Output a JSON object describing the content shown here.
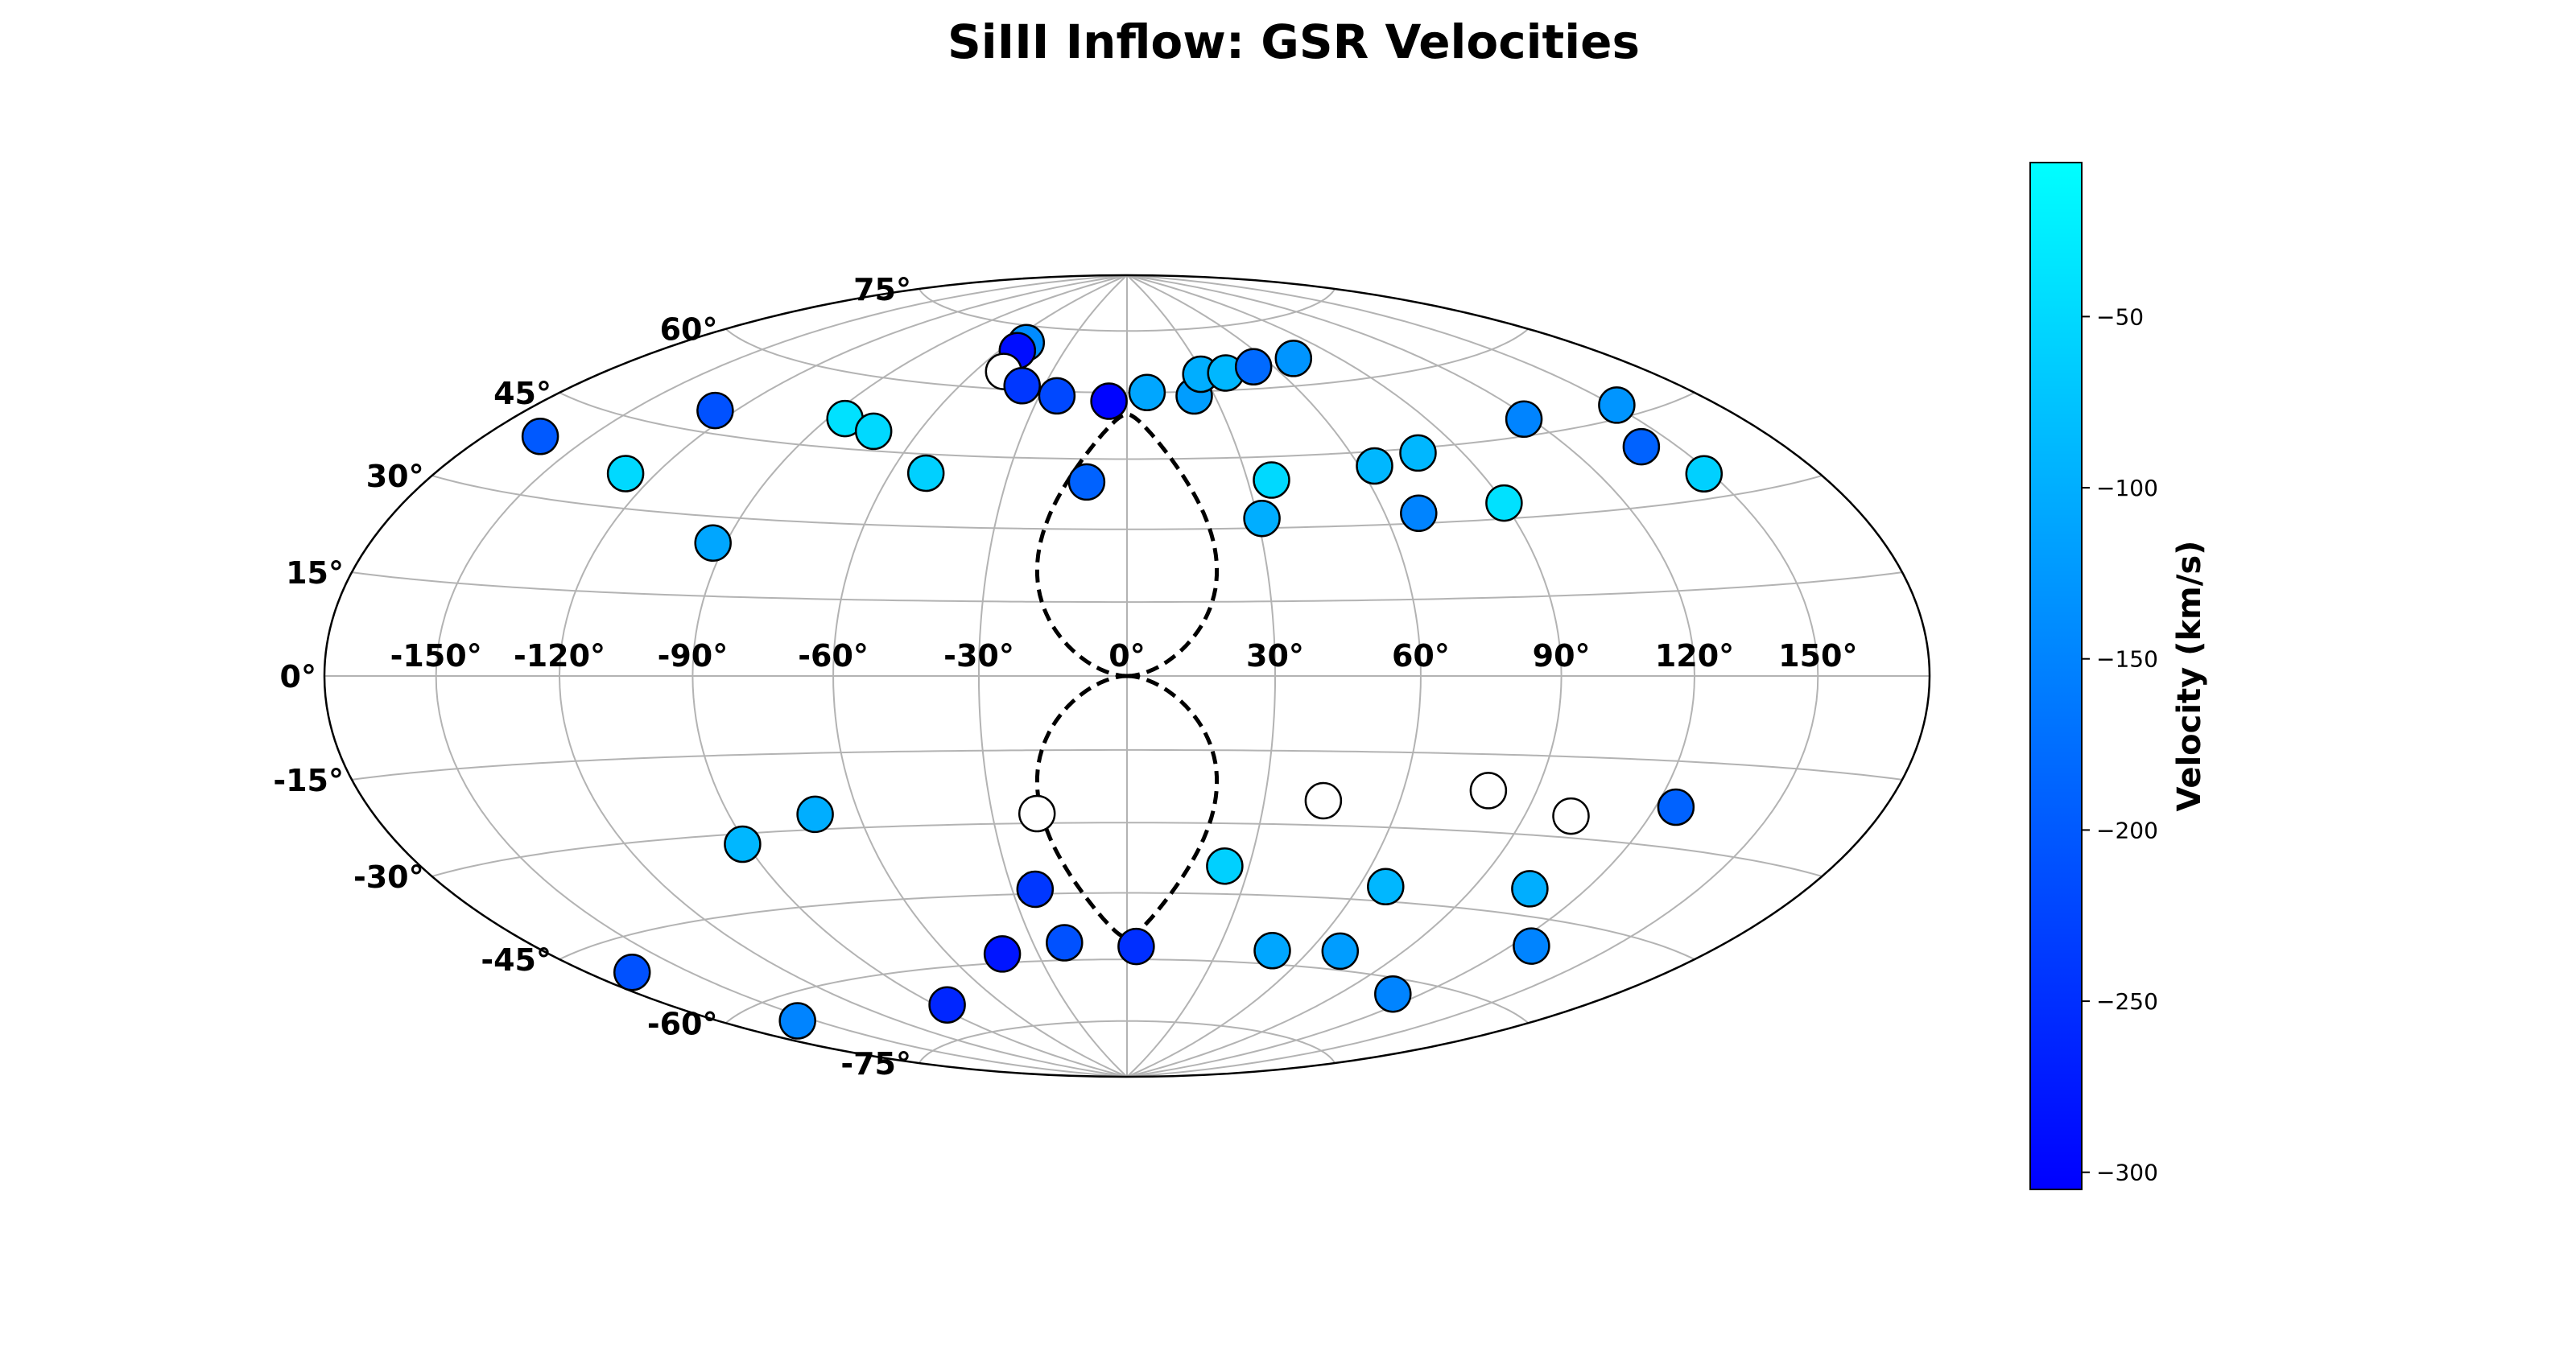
{
  "chart_data": {
    "type": "scatter",
    "projection": "hammer-aitoff",
    "title": "SiIII Inflow: GSR Velocities",
    "lon_tick_labels": [
      "-150°",
      "-120°",
      "-90°",
      "-60°",
      "-30°",
      "0°",
      "30°",
      "60°",
      "90°",
      "120°",
      "150°"
    ],
    "lat_tick_labels": [
      "-75°",
      "-60°",
      "-45°",
      "-30°",
      "-15°",
      "0°",
      "15°",
      "30°",
      "45°",
      "60°",
      "75°"
    ],
    "grid": true,
    "colorbar": {
      "label": "Velocity (km/s)",
      "range": [
        -305,
        -5
      ],
      "ticks": [
        -50,
        -100,
        -150,
        -200,
        -250,
        -300
      ],
      "tick_labels": [
        "−50",
        "−100",
        "−150",
        "−200",
        "−250",
        "−300"
      ],
      "color_low": "#0000ff",
      "color_high": "#00ffff"
    },
    "fermi_bubble_outline": {
      "lon_half_width_deg": 20,
      "lat_max_deg": 55,
      "style": "dashed"
    },
    "points": [
      {
        "lon": -52,
        "lat": 71,
        "v": -140
      },
      {
        "lon": -52,
        "lat": 69,
        "v": -290
      },
      {
        "lon": -49,
        "lat": 64,
        "v": null
      },
      {
        "lon": -38,
        "lat": 61,
        "v": -240
      },
      {
        "lon": -24,
        "lat": 59,
        "v": -220
      },
      {
        "lon": -6,
        "lat": 58,
        "v": -300
      },
      {
        "lon": 7,
        "lat": 60,
        "v": -110
      },
      {
        "lon": 23,
        "lat": 59,
        "v": -120
      },
      {
        "lon": 29,
        "lat": 64,
        "v": -100
      },
      {
        "lon": 39,
        "lat": 64,
        "v": -90
      },
      {
        "lon": 52,
        "lat": 65,
        "v": -180
      },
      {
        "lon": 72,
        "lat": 66,
        "v": -130
      },
      {
        "lon": -126,
        "lat": 49,
        "v": -210
      },
      {
        "lon": -85,
        "lat": 51,
        "v": -40
      },
      {
        "lon": -73,
        "lat": 49,
        "v": -50
      },
      {
        "lon": -51,
        "lat": 41,
        "v": -60
      },
      {
        "lon": -10,
        "lat": 40,
        "v": -190
      },
      {
        "lon": 36,
        "lat": 40,
        "v": -50
      },
      {
        "lon": 64,
        "lat": 42,
        "v": -90
      },
      {
        "lon": 78,
        "lat": 44,
        "v": -90
      },
      {
        "lon": 118,
        "lat": 48,
        "v": -150
      },
      {
        "lon": 151,
        "lat": 47,
        "v": -130
      },
      {
        "lon": -164,
        "lat": 39,
        "v": -200
      },
      {
        "lon": -128,
        "lat": 36,
        "v": -50
      },
      {
        "lon": 31,
        "lat": 32,
        "v": -100
      },
      {
        "lon": 68,
        "lat": 32,
        "v": -150
      },
      {
        "lon": 90,
        "lat": 33,
        "v": -40
      },
      {
        "lon": 148,
        "lat": 34,
        "v": -60
      },
      {
        "lon": -93,
        "lat": 25,
        "v": -110
      },
      {
        "lon": 140,
        "lat": 40,
        "v": -190
      },
      {
        "lon": -20,
        "lat": -28,
        "v": null
      },
      {
        "lon": 43,
        "lat": -25,
        "v": null
      },
      {
        "lon": 79,
        "lat": -22,
        "v": null
      },
      {
        "lon": 101,
        "lat": -26,
        "v": null
      },
      {
        "lon": 125,
        "lat": -23,
        "v": -190
      },
      {
        "lon": -70,
        "lat": -27,
        "v": -100
      },
      {
        "lon": -91,
        "lat": -32,
        "v": -90
      },
      {
        "lon": -167,
        "lat": -50,
        "v": -210
      },
      {
        "lon": -156,
        "lat": -64,
        "v": -150
      },
      {
        "lon": 24,
        "lat": -39,
        "v": -60
      },
      {
        "lon": 67,
        "lat": -42,
        "v": -90
      },
      {
        "lon": 105,
        "lat": -40,
        "v": -100
      },
      {
        "lon": -24,
        "lat": -44,
        "v": -240
      },
      {
        "lon": -42,
        "lat": -58,
        "v": -280
      },
      {
        "lon": -20,
        "lat": -56,
        "v": -210
      },
      {
        "lon": 3,
        "lat": -57,
        "v": -250
      },
      {
        "lon": 48,
        "lat": -57,
        "v": -110
      },
      {
        "lon": 70,
        "lat": -56,
        "v": -120
      },
      {
        "lon": 126,
        "lat": -50,
        "v": -150
      },
      {
        "lon": -85,
        "lat": -68,
        "v": -260
      },
      {
        "lon": 110,
        "lat": -63,
        "v": -150
      }
    ]
  }
}
